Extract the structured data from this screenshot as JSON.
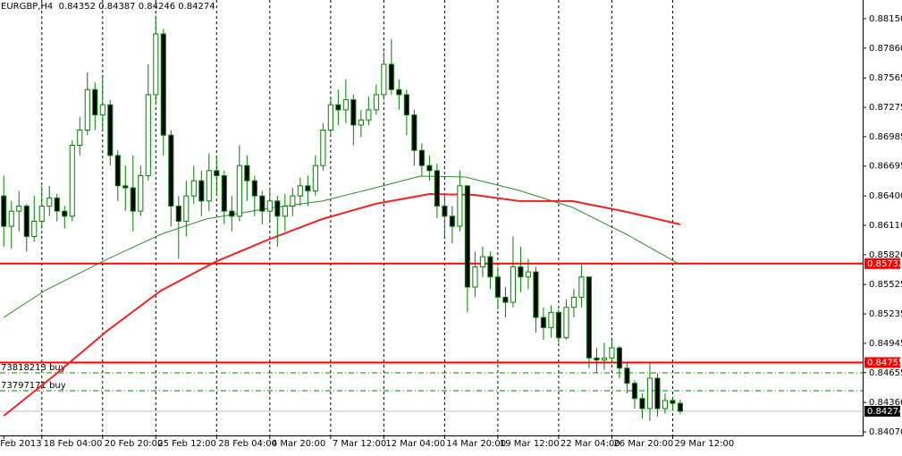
{
  "chart_data": {
    "type": "candlestick",
    "title": "EURGBP,H4  0.84352 0.84387 0.84246 0.84274",
    "open": [
      0.864,
      0.861,
      0.8625,
      0.863,
      0.86,
      0.8615,
      0.863,
      0.8638,
      0.8625,
      0.862,
      0.869,
      0.8705,
      0.8745,
      0.872,
      0.873,
      0.868,
      0.865,
      0.8648,
      0.8625,
      0.866,
      0.874,
      0.88,
      0.87,
      0.863,
      0.8615,
      0.864,
      0.8655,
      0.8635,
      0.8665,
      0.866,
      0.8625,
      0.862,
      0.867,
      0.8655,
      0.864,
      0.8625,
      0.8635,
      0.862,
      0.863,
      0.864,
      0.865,
      0.8645,
      0.867,
      0.8705,
      0.873,
      0.8725,
      0.8735,
      0.871,
      0.8715,
      0.8725,
      0.874,
      0.877,
      0.8745,
      0.874,
      0.872,
      0.8685,
      0.867,
      0.8665,
      0.863,
      0.862,
      0.861,
      0.865,
      0.855,
      0.857,
      0.858,
      0.856,
      0.854,
      0.8535,
      0.857,
      0.856,
      0.8565,
      0.852,
      0.851,
      0.8525,
      0.85,
      0.853,
      0.854,
      0.856,
      0.848,
      0.8478,
      0.848,
      0.849,
      0.847,
      0.8455,
      0.844,
      0.843,
      0.846,
      0.843,
      0.8438,
      0.84352
    ],
    "high": [
      0.866,
      0.8635,
      0.8645,
      0.8632,
      0.864,
      0.865,
      0.865,
      0.8642,
      0.863,
      0.8695,
      0.8718,
      0.8762,
      0.8752,
      0.8758,
      0.8735,
      0.8685,
      0.867,
      0.868,
      0.867,
      0.877,
      0.8818,
      0.8805,
      0.8705,
      0.864,
      0.8655,
      0.867,
      0.8665,
      0.8682,
      0.868,
      0.8665,
      0.864,
      0.869,
      0.868,
      0.866,
      0.8645,
      0.8648,
      0.864,
      0.8642,
      0.8648,
      0.8658,
      0.866,
      0.868,
      0.8712,
      0.8738,
      0.8745,
      0.8755,
      0.874,
      0.8725,
      0.8738,
      0.875,
      0.8782,
      0.8795,
      0.8755,
      0.8745,
      0.8725,
      0.8692,
      0.868,
      0.8672,
      0.864,
      0.863,
      0.8665,
      0.865,
      0.8585,
      0.859,
      0.8585,
      0.857,
      0.855,
      0.86,
      0.859,
      0.8578,
      0.857,
      0.853,
      0.8532,
      0.8528,
      0.8538,
      0.8548,
      0.8572,
      0.856,
      0.849,
      0.8495,
      0.8498,
      0.8492,
      0.8475,
      0.8458,
      0.8445,
      0.8475,
      0.8465,
      0.8445,
      0.8442,
      0.84387
    ],
    "low": [
      0.859,
      0.8588,
      0.8605,
      0.8585,
      0.8595,
      0.8608,
      0.862,
      0.8615,
      0.8608,
      0.8615,
      0.868,
      0.87,
      0.8705,
      0.8705,
      0.867,
      0.8635,
      0.8625,
      0.8605,
      0.862,
      0.8655,
      0.873,
      0.868,
      0.861,
      0.8578,
      0.86,
      0.8632,
      0.862,
      0.8625,
      0.864,
      0.8612,
      0.8605,
      0.8615,
      0.8635,
      0.862,
      0.8612,
      0.8615,
      0.859,
      0.8605,
      0.862,
      0.863,
      0.863,
      0.864,
      0.8665,
      0.87,
      0.871,
      0.8712,
      0.869,
      0.8698,
      0.871,
      0.872,
      0.8735,
      0.874,
      0.8725,
      0.87,
      0.867,
      0.866,
      0.8655,
      0.8618,
      0.86,
      0.8593,
      0.8605,
      0.8525,
      0.854,
      0.856,
      0.8548,
      0.8528,
      0.852,
      0.853,
      0.8545,
      0.8548,
      0.8505,
      0.8498,
      0.85,
      0.8495,
      0.8498,
      0.852,
      0.853,
      0.847,
      0.8465,
      0.8468,
      0.8475,
      0.846,
      0.8445,
      0.843,
      0.842,
      0.8418,
      0.8422,
      0.8425,
      0.8428,
      0.84246
    ],
    "close": [
      0.861,
      0.8625,
      0.863,
      0.86,
      0.8615,
      0.863,
      0.8638,
      0.8625,
      0.862,
      0.869,
      0.8705,
      0.8745,
      0.872,
      0.873,
      0.868,
      0.865,
      0.8648,
      0.8625,
      0.866,
      0.874,
      0.88,
      0.87,
      0.863,
      0.8615,
      0.864,
      0.8655,
      0.8635,
      0.8665,
      0.866,
      0.8625,
      0.862,
      0.867,
      0.8655,
      0.864,
      0.8625,
      0.8635,
      0.862,
      0.863,
      0.864,
      0.865,
      0.8645,
      0.867,
      0.8705,
      0.873,
      0.8725,
      0.8735,
      0.871,
      0.8715,
      0.8725,
      0.874,
      0.877,
      0.8745,
      0.874,
      0.872,
      0.8685,
      0.867,
      0.8665,
      0.863,
      0.862,
      0.861,
      0.865,
      0.855,
      0.857,
      0.858,
      0.856,
      0.854,
      0.8535,
      0.857,
      0.856,
      0.8565,
      0.852,
      0.851,
      0.8525,
      0.85,
      0.853,
      0.854,
      0.856,
      0.848,
      0.8478,
      0.848,
      0.849,
      0.847,
      0.8455,
      0.844,
      0.843,
      0.846,
      0.843,
      0.8438,
      0.84352,
      0.84274
    ],
    "up_color": "#ffffff",
    "down_color": "#000000",
    "candle_color": "#008000",
    "moving_averages": [
      {
        "color": "#2e8b2e",
        "x": [
          0,
          5.4,
          13.6,
          20.7,
          26.6,
          34.8,
          41.9,
          48.9,
          54.8,
          60.7,
          67.8,
          74.8,
          81.9,
          89
        ],
        "values": [
          0.85201,
          0.85465,
          0.85775,
          0.86022,
          0.86172,
          0.86278,
          0.86349,
          0.86481,
          0.86596,
          0.86587,
          0.86454,
          0.86287,
          0.86022,
          0.85722
        ]
      },
      {
        "color": "#ee2222",
        "x": [
          0,
          6.6,
          13.6,
          20.7,
          27.8,
          34.8,
          41.9,
          48.9,
          56,
          61.9,
          67.8,
          74.8,
          81.9,
          89
        ],
        "values": [
          0.84229,
          0.84626,
          0.85068,
          0.85465,
          0.85748,
          0.85969,
          0.86172,
          0.86322,
          0.86419,
          0.8641,
          0.86349,
          0.86349,
          0.86243,
          0.86119
        ]
      }
    ],
    "levels": [
      {
        "value": 0.85732,
        "color": "#ff0000"
      },
      {
        "value": 0.84755,
        "color": "#ff0000"
      }
    ],
    "orders": [
      {
        "value": 0.84653,
        "label": "73818213 buy",
        "color": "#008000"
      },
      {
        "value": 0.84477,
        "label": "73797171 buy",
        "color": "#008000"
      }
    ],
    "bid": 0.84274,
    "xlim": [
      -0.5,
      113
    ],
    "ylim": [
      0.84035,
      0.88335
    ],
    "xticks": [
      {
        "value": 0,
        "label": "Feb 2013"
      },
      {
        "value": 5,
        "label": "18 Feb 04:00"
      },
      {
        "value": 13,
        "label": "20 Feb 20:00"
      },
      {
        "value": 20,
        "label": "25 Feb 12:00"
      },
      {
        "value": 28,
        "label": "28 Feb 04:00"
      },
      {
        "value": 35,
        "label": "4 Mar 20:00"
      },
      {
        "value": 43,
        "label": "7 Mar 12:00"
      },
      {
        "value": 50,
        "label": "12 Mar 04:00"
      },
      {
        "value": 58,
        "label": "14 Mar 20:00"
      },
      {
        "value": 65,
        "label": "19 Mar 12:00"
      },
      {
        "value": 73,
        "label": "22 Mar 04:00"
      },
      {
        "value": 80,
        "label": "26 Mar 20:00"
      },
      {
        "value": 88,
        "label": "29 Mar 12:00"
      }
    ],
    "yticks": [
      {
        "value": 0.8815,
        "label": "0.88150"
      },
      {
        "value": 0.8786,
        "label": "0.87860"
      },
      0.87565,
      0.87275,
      0.86985,
      0.86695,
      {
        "value": 0.864,
        "label": "0.86400"
      },
      {
        "value": 0.8611,
        "label": "0.86110"
      },
      {
        "value": 0.8582,
        "label": "0.85820"
      },
      0.85525,
      0.85235,
      0.84945,
      0.84655,
      {
        "value": 0.8436,
        "label": "0.84360"
      },
      {
        "value": 0.8407,
        "label": "0.84070"
      }
    ],
    "grid": true
  }
}
